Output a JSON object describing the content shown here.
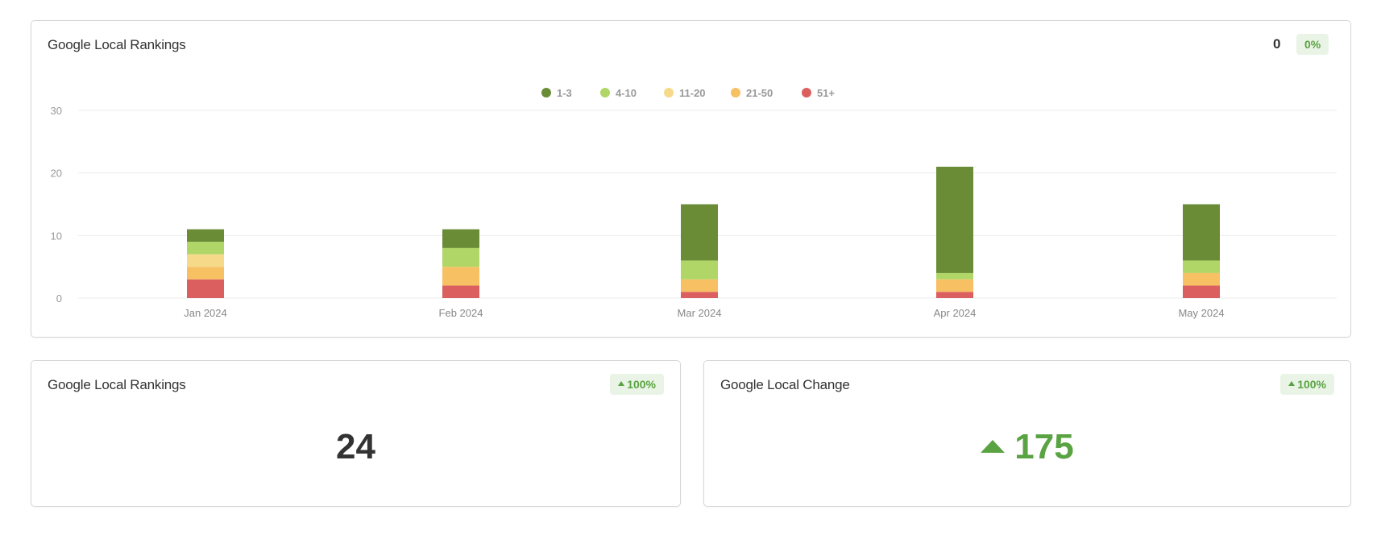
{
  "chart_card": {
    "title": "Google Local Rankings",
    "header_value": "0",
    "header_badge": "0%"
  },
  "chart_data": {
    "type": "bar",
    "stacked": true,
    "categories": [
      "Jan 2024",
      "Feb 2024",
      "Mar 2024",
      "Apr 2024",
      "May 2024"
    ],
    "series": [
      {
        "name": "51+",
        "color": "#db5f5f",
        "values": [
          3,
          2,
          1,
          1,
          2
        ]
      },
      {
        "name": "21-50",
        "color": "#f6c063",
        "values": [
          2,
          3,
          2,
          2,
          2
        ]
      },
      {
        "name": "11-20",
        "color": "#f7d98a",
        "values": [
          2,
          0,
          0,
          0,
          0
        ]
      },
      {
        "name": "4-10",
        "color": "#b1d668",
        "values": [
          2,
          3,
          3,
          1,
          2
        ]
      },
      {
        "name": "1-3",
        "color": "#6a8c37",
        "values": [
          2,
          3,
          9,
          17,
          9
        ]
      }
    ],
    "legend_order": [
      "1-3",
      "4-10",
      "11-20",
      "21-50",
      "51+"
    ],
    "ylim": [
      0,
      30
    ],
    "yticks": [
      "0",
      "10",
      "20",
      "30"
    ],
    "grid": true,
    "legend": "top-center"
  },
  "rank_card": {
    "title": "Google Local Rankings",
    "badge": "100%",
    "value": "24"
  },
  "change_card": {
    "title": "Google Local Change",
    "badge": "100%",
    "value": "175"
  }
}
